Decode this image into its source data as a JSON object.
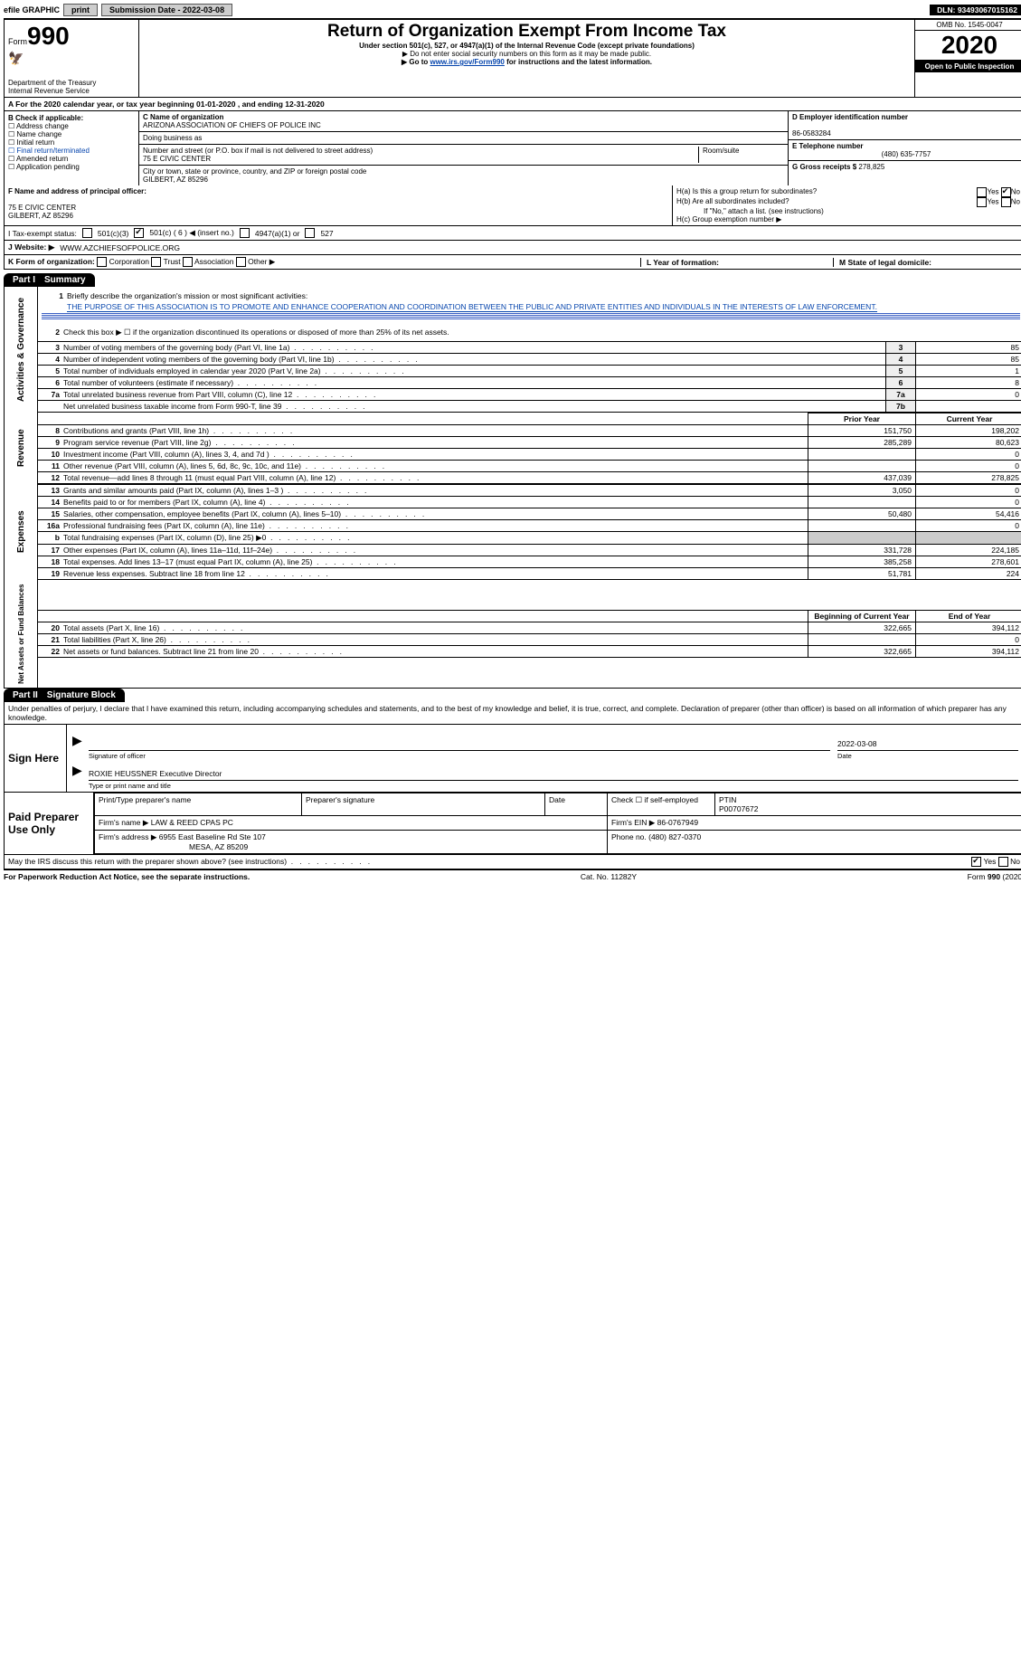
{
  "topbar": {
    "efile": "efile GRAPHIC",
    "print": "print",
    "subdate_label": "Submission Date - ",
    "subdate": "2022-03-08",
    "dln_label": "DLN: ",
    "dln": "93493067015162"
  },
  "header": {
    "form_word": "Form",
    "form_num": "990",
    "dept1": "Department of the Treasury",
    "dept2": "Internal Revenue Service",
    "title": "Return of Organization Exempt From Income Tax",
    "subtitle": "Under section 501(c), 527, or 4947(a)(1) of the Internal Revenue Code (except private foundations)",
    "note1": "▶ Do not enter social security numbers on this form as it may be made public.",
    "note2_prefix": "▶ Go to ",
    "note2_link": "www.irs.gov/Form990",
    "note2_suffix": " for instructions and the latest information.",
    "omb": "OMB No. 1545-0047",
    "year": "2020",
    "open": "Open to Public Inspection"
  },
  "rowA": {
    "text_prefix": "A For the 2020 calendar year, or tax year beginning ",
    "begin": "01-01-2020",
    "mid": "  , and ending ",
    "end": "12-31-2020"
  },
  "B": {
    "label": "B Check if applicable:",
    "items": [
      "Address change",
      "Name change",
      "Initial return",
      "Final return/terminated",
      "Amended return",
      "Application pending"
    ]
  },
  "C": {
    "name_label": "C Name of organization",
    "name": "ARIZONA ASSOCIATION OF CHIEFS OF POLICE INC",
    "dba_label": "Doing business as",
    "street_label": "Number and street (or P.O. box if mail is not delivered to street address)",
    "room_label": "Room/suite",
    "street": "75 E CIVIC CENTER",
    "city_label": "City or town, state or province, country, and ZIP or foreign postal code",
    "city": "GILBERT, AZ  85296"
  },
  "D": {
    "label": "D Employer identification number",
    "value": "86-0583284"
  },
  "E": {
    "label": "E Telephone number",
    "value": "(480) 635-7757"
  },
  "G": {
    "label": "G Gross receipts $ ",
    "value": "278,825"
  },
  "F": {
    "label": "F Name and address of principal officer:",
    "line1": "75 E CIVIC CENTER",
    "line2": "GILBERT, AZ  85296"
  },
  "H": {
    "a": "H(a)  Is this a group return for subordinates?",
    "a_yes": "Yes",
    "a_no": "No",
    "b": "H(b)  Are all subordinates included?",
    "b_note": "If \"No,\" attach a list. (see instructions)",
    "c": "H(c)  Group exemption number ▶"
  },
  "I": {
    "label": "I   Tax-exempt status:",
    "opt1": "501(c)(3)",
    "opt2": "501(c) ( 6 ) ◀ (insert no.)",
    "opt3": "4947(a)(1) or",
    "opt4": "527"
  },
  "J": {
    "label": "J   Website: ▶",
    "value": "WWW.AZCHIEFSOFPOLICE.ORG"
  },
  "K": {
    "label": "K Form of organization:",
    "opts": [
      "Corporation",
      "Trust",
      "Association",
      "Other ▶"
    ]
  },
  "L": {
    "label": "L Year of formation:"
  },
  "M": {
    "label": "M State of legal domicile:"
  },
  "part1": {
    "tab": "Part I",
    "title": "Summary"
  },
  "summary": {
    "q1": "Briefly describe the organization's mission or most significant activities:",
    "mission": "THE PURPOSE OF THIS ASSOCIATION IS TO PROMOTE AND ENHANCE COOPERATION AND COORDINATION BETWEEN THE PUBLIC AND PRIVATE ENTITIES AND INDIVIDUALS IN THE INTERESTS OF LAW ENFORCEMENT.",
    "q2": "Check this box ▶ ☐  if the organization discontinued its operations or disposed of more than 25% of its net assets.",
    "lines_small": [
      {
        "n": "3",
        "t": "Number of voting members of the governing body (Part VI, line 1a)",
        "box": "3",
        "v": "85"
      },
      {
        "n": "4",
        "t": "Number of independent voting members of the governing body (Part VI, line 1b)",
        "box": "4",
        "v": "85"
      },
      {
        "n": "5",
        "t": "Total number of individuals employed in calendar year 2020 (Part V, line 2a)",
        "box": "5",
        "v": "1"
      },
      {
        "n": "6",
        "t": "Total number of volunteers (estimate if necessary)",
        "box": "6",
        "v": "8"
      },
      {
        "n": "7a",
        "t": "Total unrelated business revenue from Part VIII, column (C), line 12",
        "box": "7a",
        "v": "0"
      },
      {
        "n": "",
        "t": "Net unrelated business taxable income from Form 990-T, line 39",
        "box": "7b",
        "v": ""
      }
    ],
    "col_headers": {
      "prior": "Prior Year",
      "current": "Current Year",
      "begin": "Beginning of Current Year",
      "end": "End of Year"
    },
    "revenue": [
      {
        "n": "8",
        "t": "Contributions and grants (Part VIII, line 1h)",
        "p": "151,750",
        "c": "198,202"
      },
      {
        "n": "9",
        "t": "Program service revenue (Part VIII, line 2g)",
        "p": "285,289",
        "c": "80,623"
      },
      {
        "n": "10",
        "t": "Investment income (Part VIII, column (A), lines 3, 4, and 7d )",
        "p": "",
        "c": "0"
      },
      {
        "n": "11",
        "t": "Other revenue (Part VIII, column (A), lines 5, 6d, 8c, 9c, 10c, and 11e)",
        "p": "",
        "c": "0"
      },
      {
        "n": "12",
        "t": "Total revenue—add lines 8 through 11 (must equal Part VIII, column (A), line 12)",
        "p": "437,039",
        "c": "278,825"
      }
    ],
    "expenses": [
      {
        "n": "13",
        "t": "Grants and similar amounts paid (Part IX, column (A), lines 1–3 )",
        "p": "3,050",
        "c": "0"
      },
      {
        "n": "14",
        "t": "Benefits paid to or for members (Part IX, column (A), line 4)",
        "p": "",
        "c": "0"
      },
      {
        "n": "15",
        "t": "Salaries, other compensation, employee benefits (Part IX, column (A), lines 5–10)",
        "p": "50,480",
        "c": "54,416"
      },
      {
        "n": "16a",
        "t": "Professional fundraising fees (Part IX, column (A), line 11e)",
        "p": "",
        "c": "0"
      },
      {
        "n": "b",
        "t": "Total fundraising expenses (Part IX, column (D), line 25) ▶0",
        "p": "",
        "c": "",
        "shade": true
      },
      {
        "n": "17",
        "t": "Other expenses (Part IX, column (A), lines 11a–11d, 11f–24e)",
        "p": "331,728",
        "c": "224,185"
      },
      {
        "n": "18",
        "t": "Total expenses. Add lines 13–17 (must equal Part IX, column (A), line 25)",
        "p": "385,258",
        "c": "278,601"
      },
      {
        "n": "19",
        "t": "Revenue less expenses. Subtract line 18 from line 12",
        "p": "51,781",
        "c": "224"
      }
    ],
    "netassets": [
      {
        "n": "20",
        "t": "Total assets (Part X, line 16)",
        "p": "322,665",
        "c": "394,112"
      },
      {
        "n": "21",
        "t": "Total liabilities (Part X, line 26)",
        "p": "",
        "c": "0"
      },
      {
        "n": "22",
        "t": "Net assets or fund balances. Subtract line 21 from line 20",
        "p": "322,665",
        "c": "394,112"
      }
    ],
    "side_labels": {
      "ag": "Activities & Governance",
      "rev": "Revenue",
      "exp": "Expenses",
      "net": "Net Assets or Fund Balances"
    }
  },
  "part2": {
    "tab": "Part II",
    "title": "Signature Block"
  },
  "penalties": "Under penalties of perjury, I declare that I have examined this return, including accompanying schedules and statements, and to the best of my knowledge and belief, it is true, correct, and complete. Declaration of preparer (other than officer) is based on all information of which preparer has any knowledge.",
  "sign": {
    "left": "Sign Here",
    "sig_label": "Signature of officer",
    "date": "2022-03-08",
    "date_label": "Date",
    "name": "ROXIE HEUSSNER  Executive Director",
    "name_label": "Type or print name and title"
  },
  "paid": {
    "left": "Paid Preparer Use Only",
    "h1": "Print/Type preparer's name",
    "h2": "Preparer's signature",
    "h3": "Date",
    "h4": "Check ☐ if self-employed",
    "h5_lbl": "PTIN",
    "h5": "P00707672",
    "firm_lbl": "Firm's name    ▶",
    "firm": "LAW & REED CPAS PC",
    "ein_lbl": "Firm's EIN ▶",
    "ein": "86-0767949",
    "addr_lbl": "Firm's address ▶",
    "addr1": "6955 East Baseline Rd Ste 107",
    "addr2": "MESA, AZ  85209",
    "phone_lbl": "Phone no. ",
    "phone": "(480) 827-0370"
  },
  "discuss": {
    "q": "May the IRS discuss this return with the preparer shown above? (see instructions)",
    "yes": "Yes",
    "no": "No"
  },
  "footer": {
    "left": "For Paperwork Reduction Act Notice, see the separate instructions.",
    "mid": "Cat. No. 11282Y",
    "right": "Form 990 (2020)"
  }
}
